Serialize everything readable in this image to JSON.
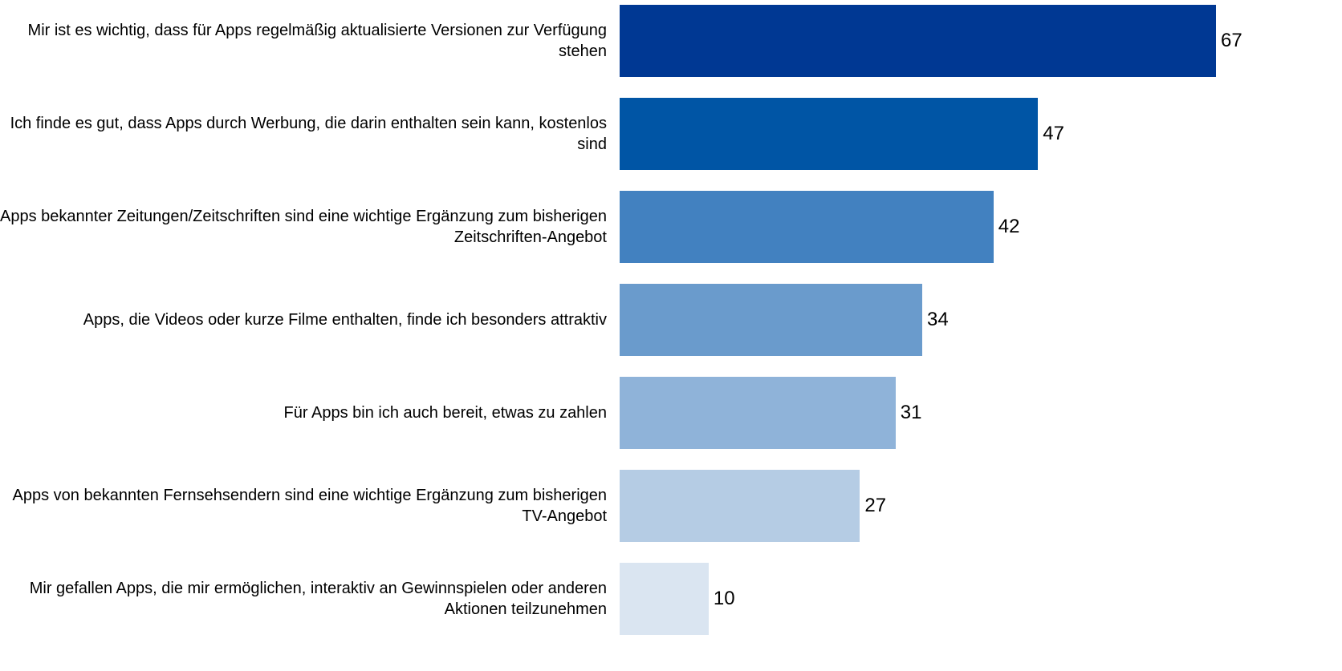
{
  "chart_data": {
    "type": "barh",
    "categories": [
      "Mir ist es wichtig, dass für Apps regelmäßig aktualisierte Versionen zur Verfügung stehen",
      "Ich finde es gut, dass Apps durch Werbung, die darin enthalten sein kann, kostenlos sind",
      "Apps bekannter Zeitungen/Zeitschriften sind eine wichtige Ergänzung zum bisherigen Zeitschriften-Angebot",
      "Apps, die Videos oder kurze Filme enthalten, finde ich besonders attraktiv",
      "Für Apps bin ich auch bereit, etwas zu zahlen",
      "Apps von bekannten Fernsehsendern sind eine wichtige Ergänzung zum bisherigen TV-Angebot",
      "Mir gefallen Apps, die mir ermöglichen, interaktiv an Gewinnspielen oder anderen Aktionen teilzunehmen"
    ],
    "values": [
      67,
      47,
      42,
      34,
      31,
      27,
      10
    ],
    "colors": [
      "#003893",
      "#0055a5",
      "#4281c0",
      "#6a9bcc",
      "#8fb3d9",
      "#b5cce4",
      "#dae5f1"
    ]
  }
}
